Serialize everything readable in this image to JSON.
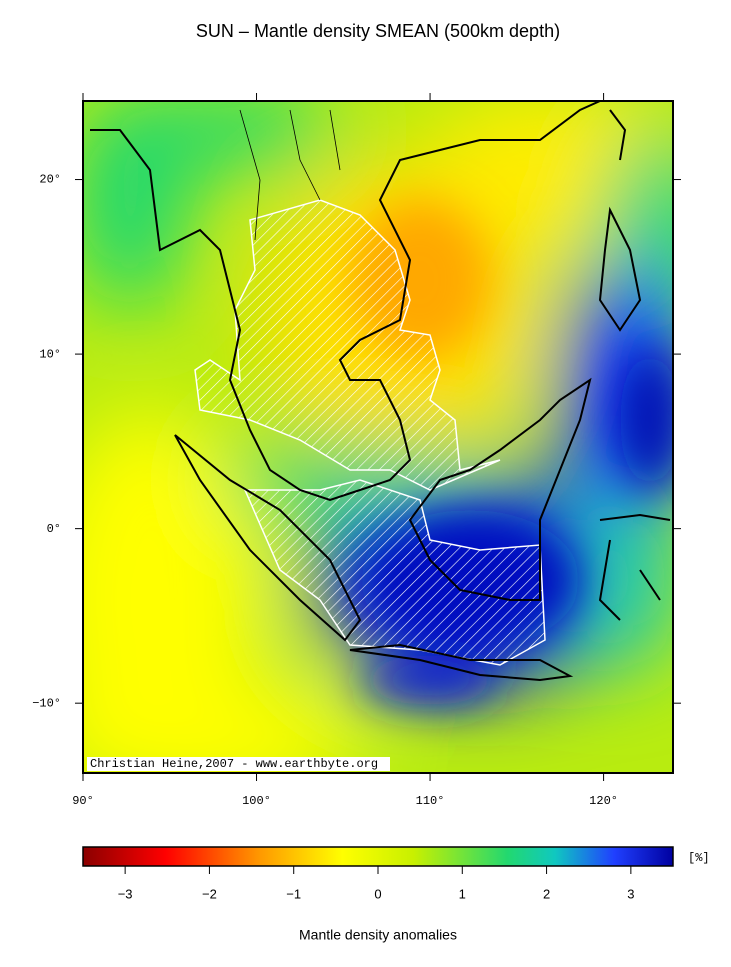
{
  "map": {
    "title": "SUN – Mantle density SMEAN (500km depth)",
    "xlim": [
      90,
      124
    ],
    "ylim": [
      -14,
      24.5
    ],
    "xticks": [
      {
        "value": 90,
        "label": "90°"
      },
      {
        "value": 100,
        "label": "100°"
      },
      {
        "value": 110,
        "label": "110°"
      },
      {
        "value": 120,
        "label": "120°"
      }
    ],
    "yticks": [
      {
        "value": -10,
        "label": "−10°"
      },
      {
        "value": 0,
        "label": "0°"
      },
      {
        "value": 10,
        "label": "10°"
      },
      {
        "value": 20,
        "label": "20°"
      }
    ],
    "credit": "Christian Heine,2007 - www.earthbyte.org",
    "colorbar": {
      "lim": [
        -3.5,
        3.5
      ],
      "ticks": [
        {
          "value": -3,
          "label": "−3"
        },
        {
          "value": -2,
          "label": "−2"
        },
        {
          "value": -1,
          "label": "−1"
        },
        0,
        1,
        2,
        3
      ],
      "unit": "[%]",
      "label": "Mantle density anomalies"
    }
  }
}
